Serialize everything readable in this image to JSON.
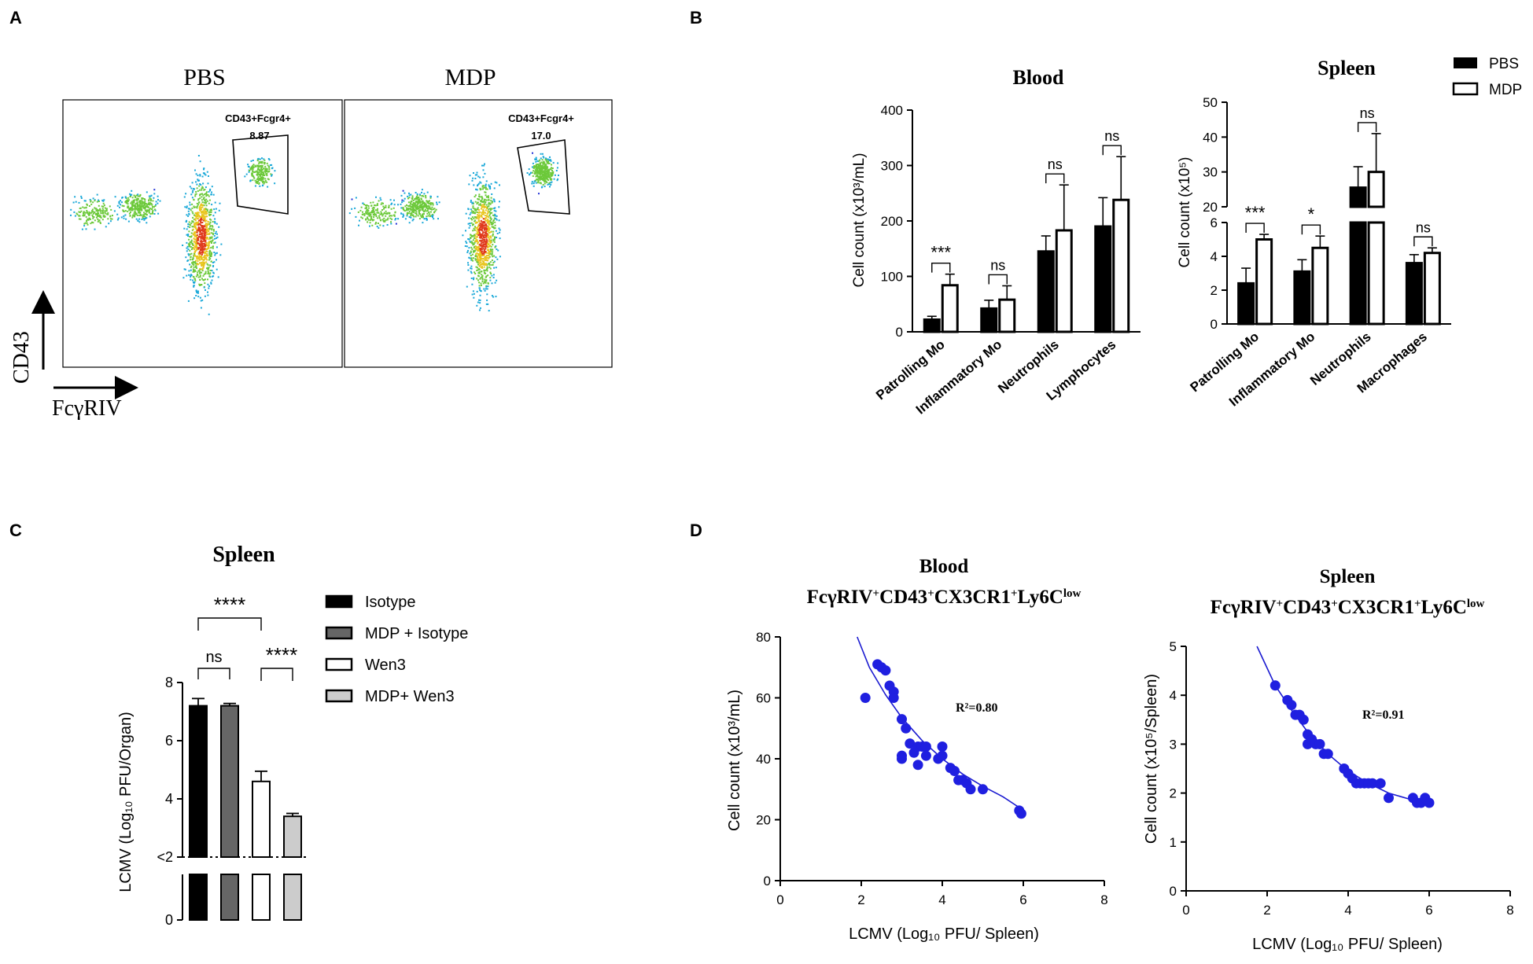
{
  "panel_letters": [
    "A",
    "B",
    "C",
    "D"
  ],
  "panel_a": {
    "plots": [
      {
        "title": "PBS",
        "gate_label": "CD43+Fcgr4+",
        "gate_value": "8.87"
      },
      {
        "title": "MDP",
        "gate_label": "CD43+Fcgr4+",
        "gate_value": "17.0"
      }
    ],
    "y_axis": "CD43",
    "x_axis": "FcγRIV"
  },
  "chart_data": [
    {
      "id": "B-blood",
      "type": "bar",
      "title": "Blood",
      "ylabel": "Cell count (x10³/mL)",
      "ylim": [
        0,
        400
      ],
      "yticks": [
        0,
        100,
        200,
        300,
        400
      ],
      "categories": [
        "Patrolling Mo",
        "Inflammatory Mo",
        "Neutrophils",
        "Lymphocytes"
      ],
      "series": [
        {
          "name": "PBS",
          "values": [
            22,
            42,
            145,
            190
          ],
          "errors": [
            6,
            15,
            28,
            52
          ]
        },
        {
          "name": "MDP",
          "values": [
            84,
            58,
            183,
            238
          ],
          "errors": [
            20,
            25,
            82,
            78
          ]
        }
      ],
      "significance": [
        "***",
        "ns",
        "ns",
        "ns"
      ]
    },
    {
      "id": "B-spleen",
      "type": "bar",
      "title": "Spleen",
      "ylabel": "Cell count (x10⁵)",
      "broken_axis": true,
      "yticks_lower": [
        0,
        2,
        4,
        6
      ],
      "yticks_upper": [
        20,
        30,
        40,
        50
      ],
      "categories": [
        "Patrolling Mo",
        "Inflammatory Mo",
        "Neutrophils",
        "Macrophages"
      ],
      "series": [
        {
          "name": "PBS",
          "values": [
            2.4,
            3.1,
            25.5,
            3.6
          ],
          "errors": [
            0.9,
            0.7,
            6,
            0.5
          ]
        },
        {
          "name": "MDP",
          "values": [
            5.0,
            4.5,
            30,
            4.2
          ],
          "errors": [
            0.3,
            0.7,
            11,
            0.3
          ]
        }
      ],
      "significance": [
        "***",
        "*",
        "ns",
        "ns"
      ],
      "legend": [
        "PBS",
        "MDP"
      ]
    },
    {
      "id": "C",
      "type": "bar",
      "title": "Spleen",
      "ylabel": "LCMV (Log₁₀ PFU/Organ)",
      "yticks": [
        "0",
        "<2",
        "4",
        "6",
        "8"
      ],
      "categories": [
        "Isotype",
        "MDP + Isotype",
        "Wen3",
        "MDP+ Wen3"
      ],
      "values": [
        7.2,
        7.2,
        4.6,
        3.4
      ],
      "errors": [
        0.25,
        0.08,
        0.35,
        0.1
      ],
      "colors": [
        "#000000",
        "#666666",
        "#ffffff",
        "#cccccc"
      ],
      "significance": [
        {
          "label": "****",
          "pair": [
            "Isotype",
            "Wen3"
          ]
        },
        {
          "label": "ns",
          "pair": [
            "Isotype",
            "MDP + Isotype"
          ]
        },
        {
          "label": "****",
          "pair": [
            "Wen3",
            "MDP+ Wen3"
          ]
        }
      ],
      "legend": [
        "Isotype",
        "MDP + Isotype",
        "Wen3",
        "MDP+ Wen3"
      ]
    },
    {
      "id": "D-blood",
      "type": "scatter",
      "title": "Blood",
      "subtitle_parts": [
        "FcγRIV",
        "+",
        "CD43",
        "+",
        "CX3CR1",
        "+",
        "Ly6C",
        "low"
      ],
      "xlabel": "LCMV (Log₁₀ PFU/ Spleen)",
      "ylabel": "Cell count (x10³/mL)",
      "xlim": [
        0,
        8
      ],
      "ylim": [
        0,
        80
      ],
      "xticks": [
        0,
        2,
        4,
        6,
        8
      ],
      "yticks": [
        0,
        20,
        40,
        60,
        80
      ],
      "r2": "R²=0.80",
      "points": [
        [
          2.1,
          60
        ],
        [
          2.4,
          71
        ],
        [
          2.5,
          70
        ],
        [
          2.6,
          69
        ],
        [
          2.7,
          64
        ],
        [
          2.8,
          62
        ],
        [
          2.8,
          60
        ],
        [
          3.0,
          53
        ],
        [
          3.0,
          41
        ],
        [
          3.0,
          40
        ],
        [
          3.1,
          50
        ],
        [
          3.2,
          45
        ],
        [
          3.3,
          42
        ],
        [
          3.4,
          38
        ],
        [
          3.4,
          44
        ],
        [
          3.5,
          44
        ],
        [
          3.6,
          44
        ],
        [
          3.6,
          41
        ],
        [
          3.9,
          40
        ],
        [
          4.0,
          44
        ],
        [
          4.0,
          41
        ],
        [
          4.2,
          37
        ],
        [
          4.3,
          36
        ],
        [
          4.4,
          33
        ],
        [
          4.5,
          33
        ],
        [
          4.6,
          32
        ],
        [
          4.7,
          30
        ],
        [
          5.0,
          30
        ],
        [
          5.9,
          23
        ],
        [
          5.95,
          22
        ]
      ],
      "fit_curve": [
        [
          1.9,
          80
        ],
        [
          2.2,
          70
        ],
        [
          2.6,
          61
        ],
        [
          3.0,
          53.5
        ],
        [
          3.5,
          46
        ],
        [
          4.0,
          40
        ],
        [
          4.5,
          35
        ],
        [
          5.0,
          31
        ],
        [
          5.5,
          27.5
        ],
        [
          5.9,
          24
        ]
      ]
    },
    {
      "id": "D-spleen",
      "type": "scatter",
      "title": "Spleen",
      "subtitle_parts": [
        "FcγRIV",
        "+",
        "CD43",
        "+",
        "CX3CR1",
        "+",
        "Ly6C",
        "low"
      ],
      "xlabel": "LCMV (Log₁₀ PFU/ Spleen)",
      "ylabel": "Cell count (x10⁵/Spleen)",
      "xlim": [
        0,
        8
      ],
      "ylim": [
        0,
        5
      ],
      "xticks": [
        0,
        2,
        4,
        6,
        8
      ],
      "yticks": [
        0,
        1,
        2,
        3,
        4,
        5
      ],
      "r2": "R²=0.91",
      "points": [
        [
          2.2,
          4.2
        ],
        [
          2.5,
          3.9
        ],
        [
          2.6,
          3.8
        ],
        [
          2.7,
          3.6
        ],
        [
          2.8,
          3.6
        ],
        [
          2.9,
          3.5
        ],
        [
          3.0,
          3.2
        ],
        [
          3.0,
          3.0
        ],
        [
          3.1,
          3.1
        ],
        [
          3.2,
          3.0
        ],
        [
          3.3,
          3.0
        ],
        [
          3.4,
          2.8
        ],
        [
          3.5,
          2.8
        ],
        [
          3.9,
          2.5
        ],
        [
          4.0,
          2.4
        ],
        [
          4.1,
          2.3
        ],
        [
          4.2,
          2.2
        ],
        [
          4.3,
          2.2
        ],
        [
          4.4,
          2.2
        ],
        [
          4.5,
          2.2
        ],
        [
          4.6,
          2.2
        ],
        [
          4.8,
          2.2
        ],
        [
          5.0,
          1.9
        ],
        [
          5.6,
          1.9
        ],
        [
          5.7,
          1.8
        ],
        [
          5.8,
          1.8
        ],
        [
          5.9,
          1.9
        ],
        [
          6.0,
          1.8
        ]
      ],
      "fit_curve": [
        [
          1.75,
          5.0
        ],
        [
          2.2,
          4.2
        ],
        [
          2.6,
          3.7
        ],
        [
          3.0,
          3.25
        ],
        [
          3.5,
          2.8
        ],
        [
          4.0,
          2.45
        ],
        [
          4.5,
          2.2
        ],
        [
          5.0,
          2.0
        ],
        [
          5.5,
          1.88
        ],
        [
          6.0,
          1.78
        ]
      ]
    }
  ]
}
